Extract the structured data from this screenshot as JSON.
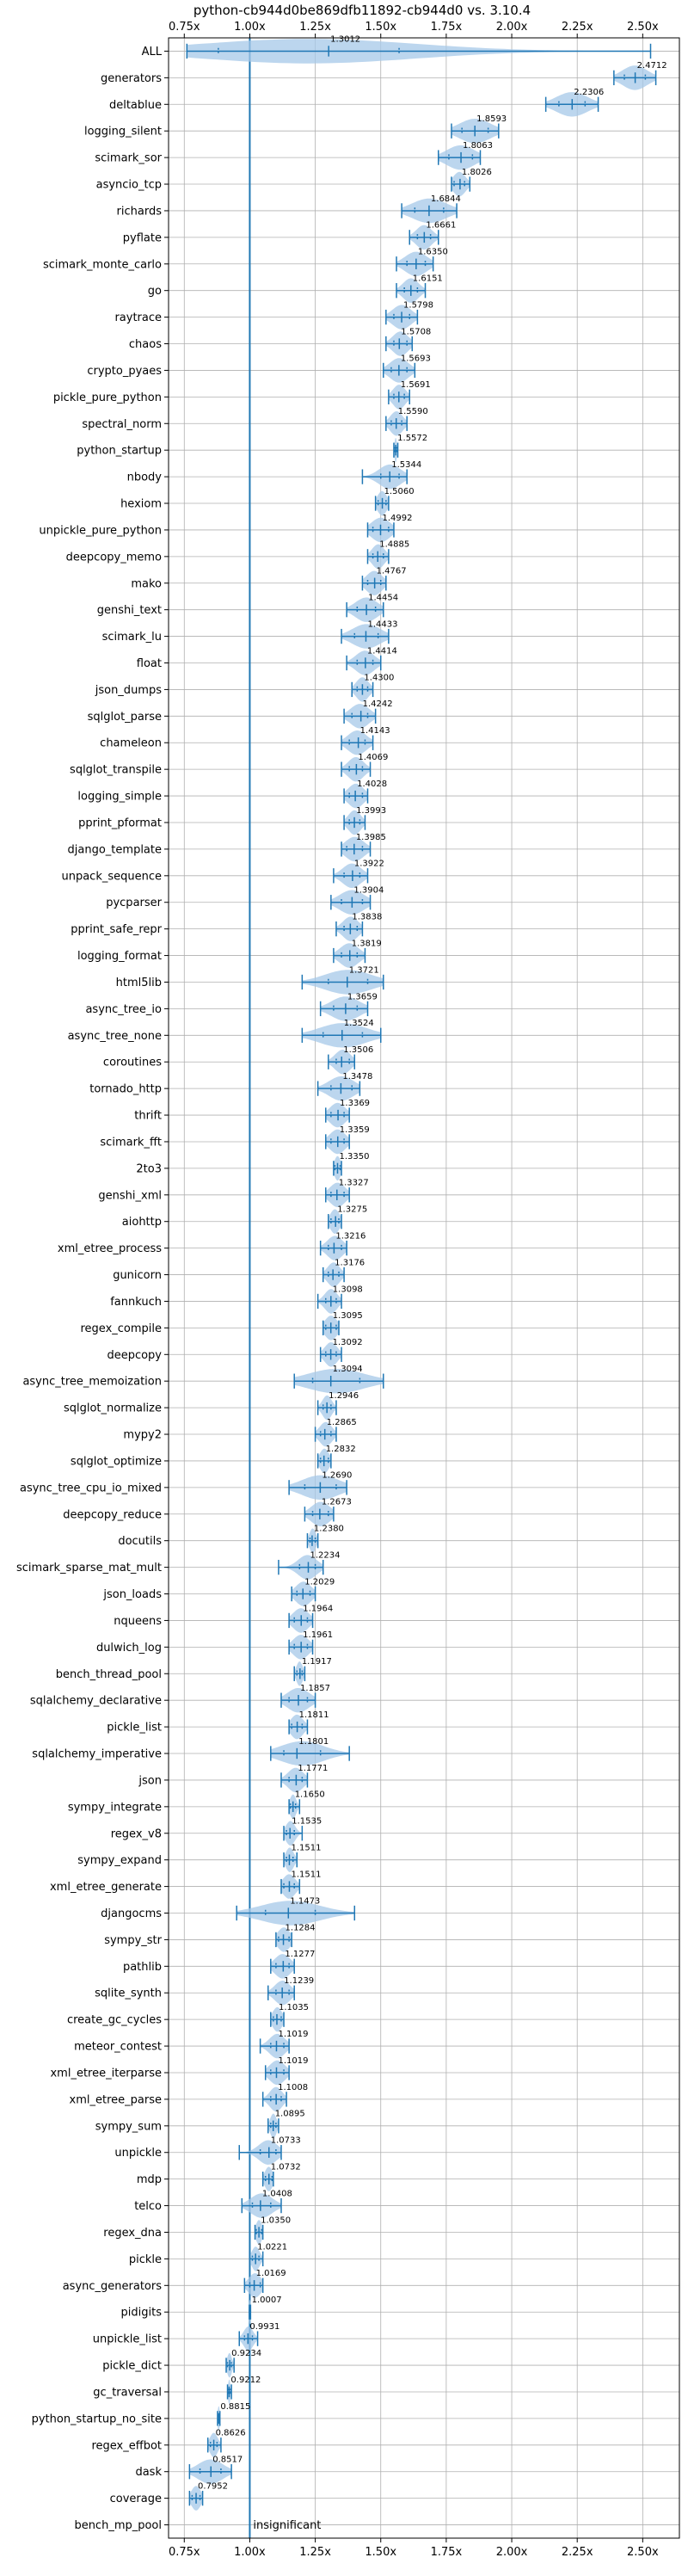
{
  "chart_data": {
    "type": "violin",
    "title": "python-cb944d0be869dfb11892-cb944d0 vs. 3.10.4",
    "xlabel": "",
    "ylabel": "",
    "xlim": [
      0.69,
      2.64
    ],
    "xticks": [
      {
        "value": 0.75,
        "label": "0.75x"
      },
      {
        "value": 1.0,
        "label": "1.00x"
      },
      {
        "value": 1.25,
        "label": "1.25x"
      },
      {
        "value": 1.5,
        "label": "1.50x"
      },
      {
        "value": 1.75,
        "label": "1.75x"
      },
      {
        "value": 2.0,
        "label": "2.00x"
      },
      {
        "value": 2.25,
        "label": "2.25x"
      },
      {
        "value": 2.5,
        "label": "2.50x"
      }
    ],
    "reference_line": 1.0,
    "grid": true,
    "colors": {
      "violin": "#a6c8e8",
      "line": "#1f77b4",
      "text": "#000000",
      "grid": "#b0b0b0"
    },
    "series": [
      {
        "name": "ALL",
        "label": "1.3012",
        "min": 0.76,
        "max": 2.53,
        "q1": 0.88,
        "q3": 1.57,
        "median": 1.3012
      },
      {
        "name": "generators",
        "label": "2.4712",
        "min": 2.39,
        "max": 2.55,
        "q1": 2.43,
        "q3": 2.51,
        "median": 2.4712
      },
      {
        "name": "deltablue",
        "label": "2.2306",
        "min": 2.13,
        "max": 2.33,
        "q1": 2.18,
        "q3": 2.28,
        "median": 2.2306
      },
      {
        "name": "logging_silent",
        "label": "1.8593",
        "min": 1.77,
        "max": 1.95,
        "q1": 1.81,
        "q3": 1.91,
        "median": 1.8593
      },
      {
        "name": "scimark_sor",
        "label": "1.8063",
        "min": 1.72,
        "max": 1.88,
        "q1": 1.76,
        "q3": 1.85,
        "median": 1.8063
      },
      {
        "name": "asyncio_tcp",
        "label": "1.8026",
        "min": 1.77,
        "max": 1.84,
        "q1": 1.78,
        "q3": 1.82,
        "median": 1.8026
      },
      {
        "name": "richards",
        "label": "1.6844",
        "min": 1.58,
        "max": 1.79,
        "q1": 1.63,
        "q3": 1.74,
        "median": 1.6844
      },
      {
        "name": "pyflate",
        "label": "1.6661",
        "min": 1.61,
        "max": 1.72,
        "q1": 1.64,
        "q3": 1.69,
        "median": 1.6661
      },
      {
        "name": "scimark_monte_carlo",
        "label": "1.6350",
        "min": 1.56,
        "max": 1.7,
        "q1": 1.6,
        "q3": 1.67,
        "median": 1.635
      },
      {
        "name": "go",
        "label": "1.6151",
        "min": 1.56,
        "max": 1.67,
        "q1": 1.59,
        "q3": 1.64,
        "median": 1.6151
      },
      {
        "name": "raytrace",
        "label": "1.5798",
        "min": 1.52,
        "max": 1.64,
        "q1": 1.55,
        "q3": 1.61,
        "median": 1.5798
      },
      {
        "name": "chaos",
        "label": "1.5708",
        "min": 1.52,
        "max": 1.62,
        "q1": 1.55,
        "q3": 1.6,
        "median": 1.5708
      },
      {
        "name": "crypto_pyaes",
        "label": "1.5693",
        "min": 1.51,
        "max": 1.63,
        "q1": 1.54,
        "q3": 1.6,
        "median": 1.5693
      },
      {
        "name": "pickle_pure_python",
        "label": "1.5691",
        "min": 1.53,
        "max": 1.61,
        "q1": 1.55,
        "q3": 1.59,
        "median": 1.5691
      },
      {
        "name": "spectral_norm",
        "label": "1.5590",
        "min": 1.52,
        "max": 1.6,
        "q1": 1.54,
        "q3": 1.58,
        "median": 1.559
      },
      {
        "name": "python_startup",
        "label": "1.5572",
        "min": 1.55,
        "max": 1.565,
        "q1": 1.553,
        "q3": 1.561,
        "median": 1.5572
      },
      {
        "name": "nbody",
        "label": "1.5344",
        "min": 1.43,
        "max": 1.6,
        "q1": 1.5,
        "q3": 1.57,
        "median": 1.5344
      },
      {
        "name": "hexiom",
        "label": "1.5060",
        "min": 1.48,
        "max": 1.53,
        "q1": 1.49,
        "q3": 1.52,
        "median": 1.506
      },
      {
        "name": "unpickle_pure_python",
        "label": "1.4992",
        "min": 1.45,
        "max": 1.55,
        "q1": 1.47,
        "q3": 1.53,
        "median": 1.4992
      },
      {
        "name": "deepcopy_memo",
        "label": "1.4885",
        "min": 1.45,
        "max": 1.53,
        "q1": 1.47,
        "q3": 1.51,
        "median": 1.4885
      },
      {
        "name": "mako",
        "label": "1.4767",
        "min": 1.43,
        "max": 1.52,
        "q1": 1.45,
        "q3": 1.5,
        "median": 1.4767
      },
      {
        "name": "genshi_text",
        "label": "1.4454",
        "min": 1.37,
        "max": 1.51,
        "q1": 1.41,
        "q3": 1.48,
        "median": 1.4454
      },
      {
        "name": "scimark_lu",
        "label": "1.4433",
        "min": 1.35,
        "max": 1.53,
        "q1": 1.4,
        "q3": 1.49,
        "median": 1.4433
      },
      {
        "name": "float",
        "label": "1.4414",
        "min": 1.37,
        "max": 1.5,
        "q1": 1.41,
        "q3": 1.47,
        "median": 1.4414
      },
      {
        "name": "json_dumps",
        "label": "1.4300",
        "min": 1.39,
        "max": 1.47,
        "q1": 1.41,
        "q3": 1.45,
        "median": 1.43
      },
      {
        "name": "sqlglot_parse",
        "label": "1.4242",
        "min": 1.36,
        "max": 1.48,
        "q1": 1.39,
        "q3": 1.45,
        "median": 1.4242
      },
      {
        "name": "chameleon",
        "label": "1.4143",
        "min": 1.35,
        "max": 1.47,
        "q1": 1.38,
        "q3": 1.44,
        "median": 1.4143
      },
      {
        "name": "sqlglot_transpile",
        "label": "1.4069",
        "min": 1.35,
        "max": 1.46,
        "q1": 1.38,
        "q3": 1.43,
        "median": 1.4069
      },
      {
        "name": "logging_simple",
        "label": "1.4028",
        "min": 1.36,
        "max": 1.45,
        "q1": 1.38,
        "q3": 1.43,
        "median": 1.4028
      },
      {
        "name": "pprint_pformat",
        "label": "1.3993",
        "min": 1.36,
        "max": 1.44,
        "q1": 1.38,
        "q3": 1.42,
        "median": 1.3993
      },
      {
        "name": "django_template",
        "label": "1.3985",
        "min": 1.35,
        "max": 1.46,
        "q1": 1.37,
        "q3": 1.43,
        "median": 1.3985
      },
      {
        "name": "unpack_sequence",
        "label": "1.3922",
        "min": 1.32,
        "max": 1.45,
        "q1": 1.36,
        "q3": 1.42,
        "median": 1.3922
      },
      {
        "name": "pycparser",
        "label": "1.3904",
        "min": 1.31,
        "max": 1.46,
        "q1": 1.35,
        "q3": 1.43,
        "median": 1.3904
      },
      {
        "name": "pprint_safe_repr",
        "label": "1.3838",
        "min": 1.33,
        "max": 1.43,
        "q1": 1.36,
        "q3": 1.41,
        "median": 1.3838
      },
      {
        "name": "logging_format",
        "label": "1.3819",
        "min": 1.32,
        "max": 1.44,
        "q1": 1.35,
        "q3": 1.41,
        "median": 1.3819
      },
      {
        "name": "html5lib",
        "label": "1.3721",
        "min": 1.2,
        "max": 1.51,
        "q1": 1.3,
        "q3": 1.45,
        "median": 1.3721
      },
      {
        "name": "async_tree_io",
        "label": "1.3659",
        "min": 1.27,
        "max": 1.45,
        "q1": 1.32,
        "q3": 1.41,
        "median": 1.3659
      },
      {
        "name": "async_tree_none",
        "label": "1.3524",
        "min": 1.2,
        "max": 1.5,
        "q1": 1.28,
        "q3": 1.43,
        "median": 1.3524
      },
      {
        "name": "coroutines",
        "label": "1.3506",
        "min": 1.3,
        "max": 1.4,
        "q1": 1.33,
        "q3": 1.38,
        "median": 1.3506
      },
      {
        "name": "tornado_http",
        "label": "1.3478",
        "min": 1.26,
        "max": 1.42,
        "q1": 1.31,
        "q3": 1.39,
        "median": 1.3478
      },
      {
        "name": "thrift",
        "label": "1.3369",
        "min": 1.29,
        "max": 1.38,
        "q1": 1.31,
        "q3": 1.36,
        "median": 1.3369
      },
      {
        "name": "scimark_fft",
        "label": "1.3359",
        "min": 1.29,
        "max": 1.38,
        "q1": 1.31,
        "q3": 1.36,
        "median": 1.3359
      },
      {
        "name": "2to3",
        "label": "1.3350",
        "min": 1.32,
        "max": 1.35,
        "q1": 1.325,
        "q3": 1.345,
        "median": 1.335
      },
      {
        "name": "genshi_xml",
        "label": "1.3327",
        "min": 1.29,
        "max": 1.38,
        "q1": 1.31,
        "q3": 1.36,
        "median": 1.3327
      },
      {
        "name": "aiohttp",
        "label": "1.3275",
        "min": 1.3,
        "max": 1.35,
        "q1": 1.31,
        "q3": 1.34,
        "median": 1.3275
      },
      {
        "name": "xml_etree_process",
        "label": "1.3216",
        "min": 1.27,
        "max": 1.37,
        "q1": 1.3,
        "q3": 1.35,
        "median": 1.3216
      },
      {
        "name": "gunicorn",
        "label": "1.3176",
        "min": 1.28,
        "max": 1.36,
        "q1": 1.3,
        "q3": 1.34,
        "median": 1.3176
      },
      {
        "name": "fannkuch",
        "label": "1.3098",
        "min": 1.26,
        "max": 1.35,
        "q1": 1.29,
        "q3": 1.33,
        "median": 1.3098
      },
      {
        "name": "regex_compile",
        "label": "1.3095",
        "min": 1.28,
        "max": 1.34,
        "q1": 1.29,
        "q3": 1.33,
        "median": 1.3095
      },
      {
        "name": "deepcopy",
        "label": "1.3092",
        "min": 1.27,
        "max": 1.35,
        "q1": 1.29,
        "q3": 1.33,
        "median": 1.3092
      },
      {
        "name": "async_tree_memoization",
        "label": "1.3094",
        "min": 1.17,
        "max": 1.51,
        "q1": 1.24,
        "q3": 1.42,
        "median": 1.3094
      },
      {
        "name": "sqlglot_normalize",
        "label": "1.2946",
        "min": 1.26,
        "max": 1.33,
        "q1": 1.28,
        "q3": 1.31,
        "median": 1.2946
      },
      {
        "name": "mypy2",
        "label": "1.2865",
        "min": 1.25,
        "max": 1.33,
        "q1": 1.27,
        "q3": 1.31,
        "median": 1.2865
      },
      {
        "name": "sqlglot_optimize",
        "label": "1.2832",
        "min": 1.26,
        "max": 1.31,
        "q1": 1.27,
        "q3": 1.3,
        "median": 1.2832
      },
      {
        "name": "async_tree_cpu_io_mixed",
        "label": "1.2690",
        "min": 1.15,
        "max": 1.37,
        "q1": 1.21,
        "q3": 1.33,
        "median": 1.269
      },
      {
        "name": "deepcopy_reduce",
        "label": "1.2673",
        "min": 1.21,
        "max": 1.32,
        "q1": 1.24,
        "q3": 1.3,
        "median": 1.2673
      },
      {
        "name": "docutils",
        "label": "1.2380",
        "min": 1.22,
        "max": 1.26,
        "q1": 1.23,
        "q3": 1.25,
        "median": 1.238
      },
      {
        "name": "scimark_sparse_mat_mult",
        "label": "1.2234",
        "min": 1.11,
        "max": 1.28,
        "q1": 1.19,
        "q3": 1.25,
        "median": 1.2234
      },
      {
        "name": "json_loads",
        "label": "1.2029",
        "min": 1.16,
        "max": 1.25,
        "q1": 1.18,
        "q3": 1.23,
        "median": 1.2029
      },
      {
        "name": "nqueens",
        "label": "1.1964",
        "min": 1.15,
        "max": 1.24,
        "q1": 1.17,
        "q3": 1.22,
        "median": 1.1964
      },
      {
        "name": "dulwich_log",
        "label": "1.1961",
        "min": 1.15,
        "max": 1.24,
        "q1": 1.17,
        "q3": 1.22,
        "median": 1.1961
      },
      {
        "name": "bench_thread_pool",
        "label": "1.1917",
        "min": 1.17,
        "max": 1.21,
        "q1": 1.18,
        "q3": 1.2,
        "median": 1.1917
      },
      {
        "name": "sqlalchemy_declarative",
        "label": "1.1857",
        "min": 1.12,
        "max": 1.25,
        "q1": 1.15,
        "q3": 1.22,
        "median": 1.1857
      },
      {
        "name": "pickle_list",
        "label": "1.1811",
        "min": 1.15,
        "max": 1.22,
        "q1": 1.16,
        "q3": 1.2,
        "median": 1.1811
      },
      {
        "name": "sqlalchemy_imperative",
        "label": "1.1801",
        "min": 1.08,
        "max": 1.38,
        "q1": 1.13,
        "q3": 1.27,
        "median": 1.1801
      },
      {
        "name": "json",
        "label": "1.1771",
        "min": 1.12,
        "max": 1.22,
        "q1": 1.15,
        "q3": 1.2,
        "median": 1.1771
      },
      {
        "name": "sympy_integrate",
        "label": "1.1650",
        "min": 1.15,
        "max": 1.19,
        "q1": 1.155,
        "q3": 1.175,
        "median": 1.165
      },
      {
        "name": "regex_v8",
        "label": "1.1535",
        "min": 1.13,
        "max": 1.2,
        "q1": 1.14,
        "q3": 1.17,
        "median": 1.1535
      },
      {
        "name": "sympy_expand",
        "label": "1.1511",
        "min": 1.13,
        "max": 1.18,
        "q1": 1.14,
        "q3": 1.165,
        "median": 1.1511
      },
      {
        "name": "xml_etree_generate",
        "label": "1.1511",
        "min": 1.12,
        "max": 1.19,
        "q1": 1.13,
        "q3": 1.17,
        "median": 1.1511
      },
      {
        "name": "djangocms",
        "label": "1.1473",
        "min": 0.95,
        "max": 1.4,
        "q1": 1.06,
        "q3": 1.25,
        "median": 1.1473
      },
      {
        "name": "sympy_str",
        "label": "1.1284",
        "min": 1.1,
        "max": 1.16,
        "q1": 1.11,
        "q3": 1.15,
        "median": 1.1284
      },
      {
        "name": "pathlib",
        "label": "1.1277",
        "min": 1.08,
        "max": 1.17,
        "q1": 1.1,
        "q3": 1.15,
        "median": 1.1277
      },
      {
        "name": "sqlite_synth",
        "label": "1.1239",
        "min": 1.07,
        "max": 1.17,
        "q1": 1.1,
        "q3": 1.15,
        "median": 1.1239
      },
      {
        "name": "create_gc_cycles",
        "label": "1.1035",
        "min": 1.08,
        "max": 1.13,
        "q1": 1.09,
        "q3": 1.12,
        "median": 1.1035
      },
      {
        "name": "meteor_contest",
        "label": "1.1019",
        "min": 1.04,
        "max": 1.15,
        "q1": 1.08,
        "q3": 1.13,
        "median": 1.1019
      },
      {
        "name": "xml_etree_iterparse",
        "label": "1.1019",
        "min": 1.06,
        "max": 1.15,
        "q1": 1.08,
        "q3": 1.13,
        "median": 1.1019
      },
      {
        "name": "xml_etree_parse",
        "label": "1.1008",
        "min": 1.05,
        "max": 1.14,
        "q1": 1.08,
        "q3": 1.12,
        "median": 1.1008
      },
      {
        "name": "sympy_sum",
        "label": "1.0895",
        "min": 1.07,
        "max": 1.11,
        "q1": 1.08,
        "q3": 1.1,
        "median": 1.0895
      },
      {
        "name": "unpickle",
        "label": "1.0733",
        "min": 0.96,
        "max": 1.12,
        "q1": 1.04,
        "q3": 1.1,
        "median": 1.0733
      },
      {
        "name": "mdp",
        "label": "1.0732",
        "min": 1.05,
        "max": 1.09,
        "q1": 1.06,
        "q3": 1.085,
        "median": 1.0732
      },
      {
        "name": "telco",
        "label": "1.0408",
        "min": 0.97,
        "max": 1.12,
        "q1": 1.01,
        "q3": 1.08,
        "median": 1.0408
      },
      {
        "name": "regex_dna",
        "label": "1.0350",
        "min": 1.02,
        "max": 1.05,
        "q1": 1.025,
        "q3": 1.045,
        "median": 1.035
      },
      {
        "name": "pickle",
        "label": "1.0221",
        "min": 1.0,
        "max": 1.05,
        "q1": 1.01,
        "q3": 1.035,
        "median": 1.0221
      },
      {
        "name": "async_generators",
        "label": "1.0169",
        "min": 0.98,
        "max": 1.05,
        "q1": 1.0,
        "q3": 1.04,
        "median": 1.0169
      },
      {
        "name": "pidigits",
        "label": "1.0007",
        "min": 0.998,
        "max": 1.003,
        "q1": 0.999,
        "q3": 1.002,
        "median": 1.0007
      },
      {
        "name": "unpickle_list",
        "label": "0.9931",
        "min": 0.96,
        "max": 1.03,
        "q1": 0.98,
        "q3": 1.01,
        "median": 0.9931
      },
      {
        "name": "pickle_dict",
        "label": "0.9234",
        "min": 0.91,
        "max": 0.94,
        "q1": 0.915,
        "q3": 0.93,
        "median": 0.9234
      },
      {
        "name": "gc_traversal",
        "label": "0.9212",
        "min": 0.915,
        "max": 0.93,
        "q1": 0.918,
        "q3": 0.925,
        "median": 0.9212
      },
      {
        "name": "python_startup_no_site",
        "label": "0.8815",
        "min": 0.877,
        "max": 0.886,
        "q1": 0.879,
        "q3": 0.884,
        "median": 0.8815
      },
      {
        "name": "regex_effbot",
        "label": "0.8626",
        "min": 0.84,
        "max": 0.89,
        "q1": 0.85,
        "q3": 0.875,
        "median": 0.8626
      },
      {
        "name": "dask",
        "label": "0.8517",
        "min": 0.77,
        "max": 0.93,
        "q1": 0.81,
        "q3": 0.89,
        "median": 0.8517
      },
      {
        "name": "coverage",
        "label": "0.7952",
        "min": 0.77,
        "max": 0.82,
        "q1": 0.78,
        "q3": 0.81,
        "median": 0.7952
      },
      {
        "name": "bench_mp_pool",
        "label": "insignificant",
        "insignificant": true
      }
    ]
  }
}
